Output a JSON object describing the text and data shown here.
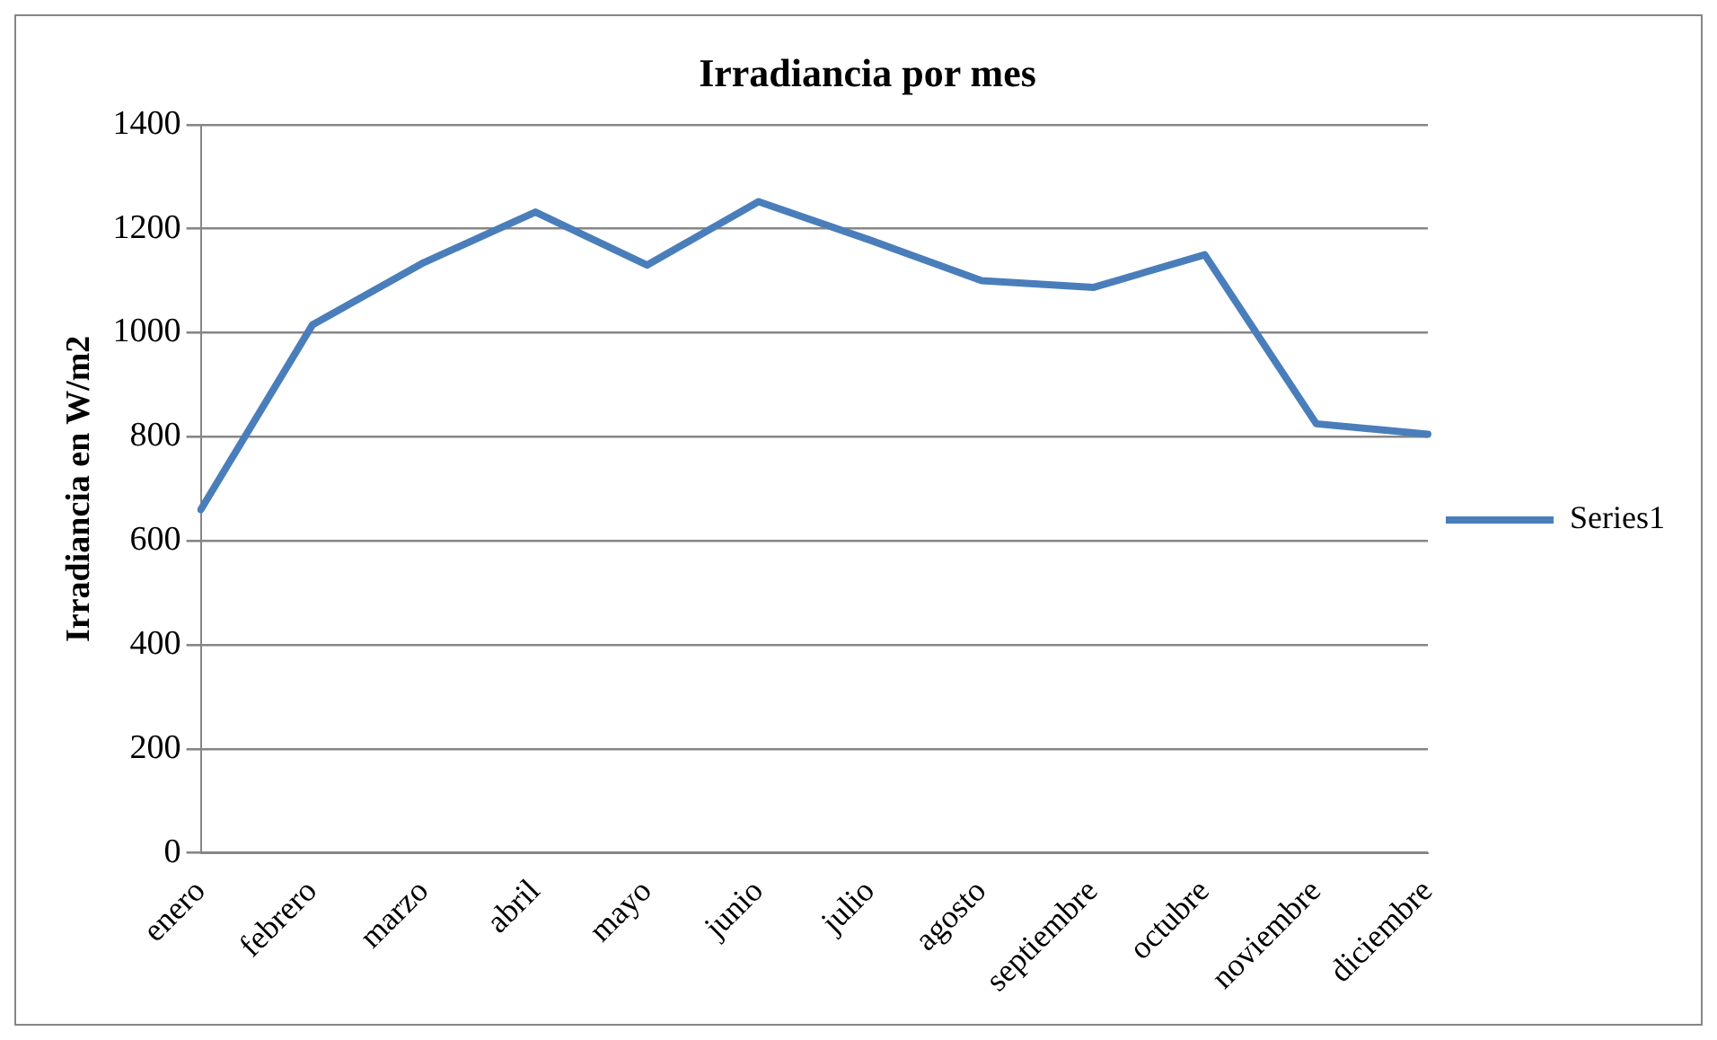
{
  "chart_data": {
    "type": "line",
    "title": "Irradiancia por mes",
    "ylabel": "Irradiancia en W/m2",
    "categories": [
      "enero",
      "febrero",
      "marzo",
      "abril",
      "mayo",
      "junio",
      "julio",
      "agosto",
      "septiembre",
      "octubre",
      "noviembre",
      "diciembre"
    ],
    "series": [
      {
        "name": "Series1",
        "color": "#4a7ebb",
        "values": [
          660,
          1015,
          1135,
          1232,
          1130,
          1252,
          1178,
          1100,
          1087,
          1150,
          825,
          805
        ]
      }
    ],
    "ylim": [
      0,
      1400
    ],
    "yticks": [
      0,
      200,
      400,
      600,
      800,
      1000,
      1200,
      1400
    ],
    "grid": "y",
    "legend": "right",
    "marker": "none",
    "line_style": "solid"
  }
}
